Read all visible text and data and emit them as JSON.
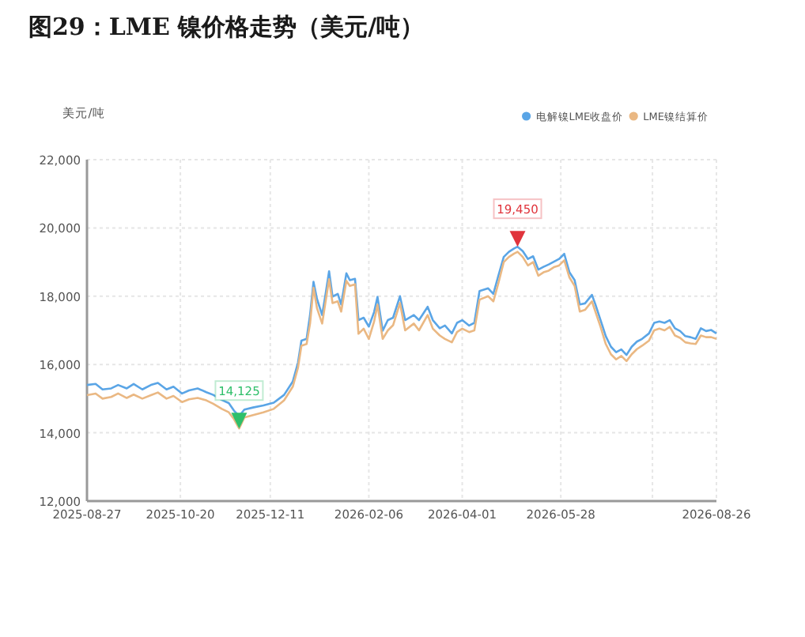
{
  "chart_data": {
    "type": "line",
    "title": "图29：LME 镍价格走势（美元/吨）",
    "ylabel": "美元/吨",
    "x": [
      "2025-08-27",
      "2025-09-01",
      "2025-09-05",
      "2025-09-10",
      "2025-09-14",
      "2025-09-19",
      "2025-09-23",
      "2025-09-28",
      "2025-10-03",
      "2025-10-07",
      "2025-10-12",
      "2025-10-16",
      "2025-10-21",
      "2025-10-25",
      "2025-10-30",
      "2025-11-04",
      "2025-11-08",
      "2025-11-13",
      "2025-11-17",
      "2025-11-20",
      "2025-11-23",
      "2025-11-26",
      "2025-12-01",
      "2025-12-07",
      "2025-12-13",
      "2025-12-19",
      "2025-12-24",
      "2025-12-27",
      "2025-12-29",
      "2026-01-01",
      "2026-01-03",
      "2026-01-05",
      "2026-01-07",
      "2026-01-10",
      "2026-01-12",
      "2026-01-14",
      "2026-01-16",
      "2026-01-19",
      "2026-01-21",
      "2026-01-24",
      "2026-01-26",
      "2026-01-29",
      "2026-01-31",
      "2026-02-03",
      "2026-02-06",
      "2026-02-09",
      "2026-02-11",
      "2026-02-14",
      "2026-02-17",
      "2026-02-20",
      "2026-02-24",
      "2026-02-27",
      "2026-03-04",
      "2026-03-07",
      "2026-03-12",
      "2026-03-15",
      "2026-03-19",
      "2026-03-22",
      "2026-03-26",
      "2026-03-29",
      "2026-04-01",
      "2026-04-05",
      "2026-04-08",
      "2026-04-11",
      "2026-04-16",
      "2026-04-19",
      "2026-04-22",
      "2026-04-25",
      "2026-04-28",
      "2026-05-01",
      "2026-05-03",
      "2026-05-06",
      "2026-05-09",
      "2026-05-12",
      "2026-05-15",
      "2026-05-18",
      "2026-05-21",
      "2026-05-24",
      "2026-05-27",
      "2026-05-30",
      "2026-06-02",
      "2026-06-05",
      "2026-06-08",
      "2026-06-11",
      "2026-06-15",
      "2026-06-17",
      "2026-06-20",
      "2026-06-23",
      "2026-06-26",
      "2026-06-29",
      "2026-07-02",
      "2026-07-05",
      "2026-07-08",
      "2026-07-11",
      "2026-07-14",
      "2026-07-18",
      "2026-07-21",
      "2026-07-24",
      "2026-07-27",
      "2026-07-30",
      "2026-08-02",
      "2026-08-05",
      "2026-08-08",
      "2026-08-11",
      "2026-08-14",
      "2026-08-17",
      "2026-08-20",
      "2026-08-23",
      "2026-08-26"
    ],
    "series": [
      {
        "name": "电解镍LME收盘价",
        "color": "#5aa5e6",
        "values": [
          15400,
          15430,
          15270,
          15300,
          15400,
          15300,
          15430,
          15270,
          15400,
          15460,
          15270,
          15350,
          15150,
          15240,
          15300,
          15190,
          15110,
          14960,
          14870,
          14650,
          14490,
          14680,
          14740,
          14800,
          14880,
          15110,
          15500,
          16050,
          16700,
          16750,
          17450,
          18420,
          17920,
          17450,
          18070,
          18730,
          17990,
          18070,
          17760,
          18670,
          18470,
          18510,
          17300,
          17370,
          17110,
          17530,
          17980,
          16990,
          17300,
          17370,
          18000,
          17300,
          17450,
          17300,
          17690,
          17300,
          17060,
          17140,
          16910,
          17220,
          17300,
          17140,
          17220,
          18150,
          18230,
          18070,
          18620,
          19150,
          19300,
          19400,
          19450,
          19320,
          19090,
          19170,
          18780,
          18860,
          18930,
          19010,
          19090,
          19240,
          18700,
          18470,
          17760,
          17790,
          18040,
          17760,
          17300,
          16830,
          16520,
          16360,
          16440,
          16280,
          16520,
          16670,
          16750,
          16910,
          17220,
          17260,
          17220,
          17300,
          17060,
          16980,
          16830,
          16800,
          16750,
          17060,
          16980,
          17010,
          16910
        ]
      },
      {
        "name": "LME镍结算价",
        "color": "#eab883",
        "values": [
          15100,
          15150,
          15000,
          15050,
          15150,
          15020,
          15120,
          15000,
          15100,
          15180,
          15000,
          15080,
          14900,
          14980,
          15020,
          14950,
          14850,
          14700,
          14600,
          14400,
          14125,
          14450,
          14520,
          14600,
          14700,
          14950,
          15350,
          15900,
          16550,
          16600,
          17200,
          18250,
          17650,
          17200,
          17850,
          18500,
          17800,
          17850,
          17550,
          18450,
          18300,
          18350,
          16900,
          17050,
          16750,
          17250,
          17750,
          16750,
          17000,
          17150,
          17800,
          17000,
          17200,
          17000,
          17450,
          17050,
          16850,
          16750,
          16650,
          16950,
          17050,
          16950,
          17000,
          17900,
          18000,
          17850,
          18400,
          19000,
          19150,
          19250,
          19300,
          19150,
          18900,
          19000,
          18600,
          18700,
          18750,
          18850,
          18900,
          19050,
          18550,
          18300,
          17550,
          17600,
          17850,
          17550,
          17100,
          16600,
          16300,
          16150,
          16250,
          16100,
          16300,
          16450,
          16550,
          16700,
          17000,
          17050,
          17000,
          17100,
          16850,
          16780,
          16650,
          16620,
          16600,
          16850,
          16800,
          16800,
          16750
        ]
      }
    ],
    "xlim": [
      "2025-08-27",
      "2026-08-26"
    ],
    "xticks": [
      "2025-08-27",
      "2025-10-20",
      "2025-12-11",
      "2026-02-06",
      "2026-04-01",
      "2026-05-28",
      {
        "value": "2026-07-20",
        "label": null
      },
      "2026-08-26"
    ],
    "ylim": [
      12000,
      22000
    ],
    "yticks": [
      {
        "value": 12000,
        "label": "12,000"
      },
      {
        "value": 14000,
        "label": "14,000"
      },
      {
        "value": 16000,
        "label": "16,000"
      },
      {
        "value": 18000,
        "label": "18,000"
      },
      {
        "value": 20000,
        "label": "20,000"
      },
      {
        "value": 22000,
        "label": "22,000"
      }
    ],
    "annotations": [
      {
        "text": "14,125",
        "x": "2025-11-23",
        "y": 14125
      },
      {
        "text": "19,450",
        "x": "2026-05-03",
        "y": 19450
      }
    ],
    "grid": true,
    "legend": "top right",
    "marker": "none",
    "line_style": "solid"
  }
}
